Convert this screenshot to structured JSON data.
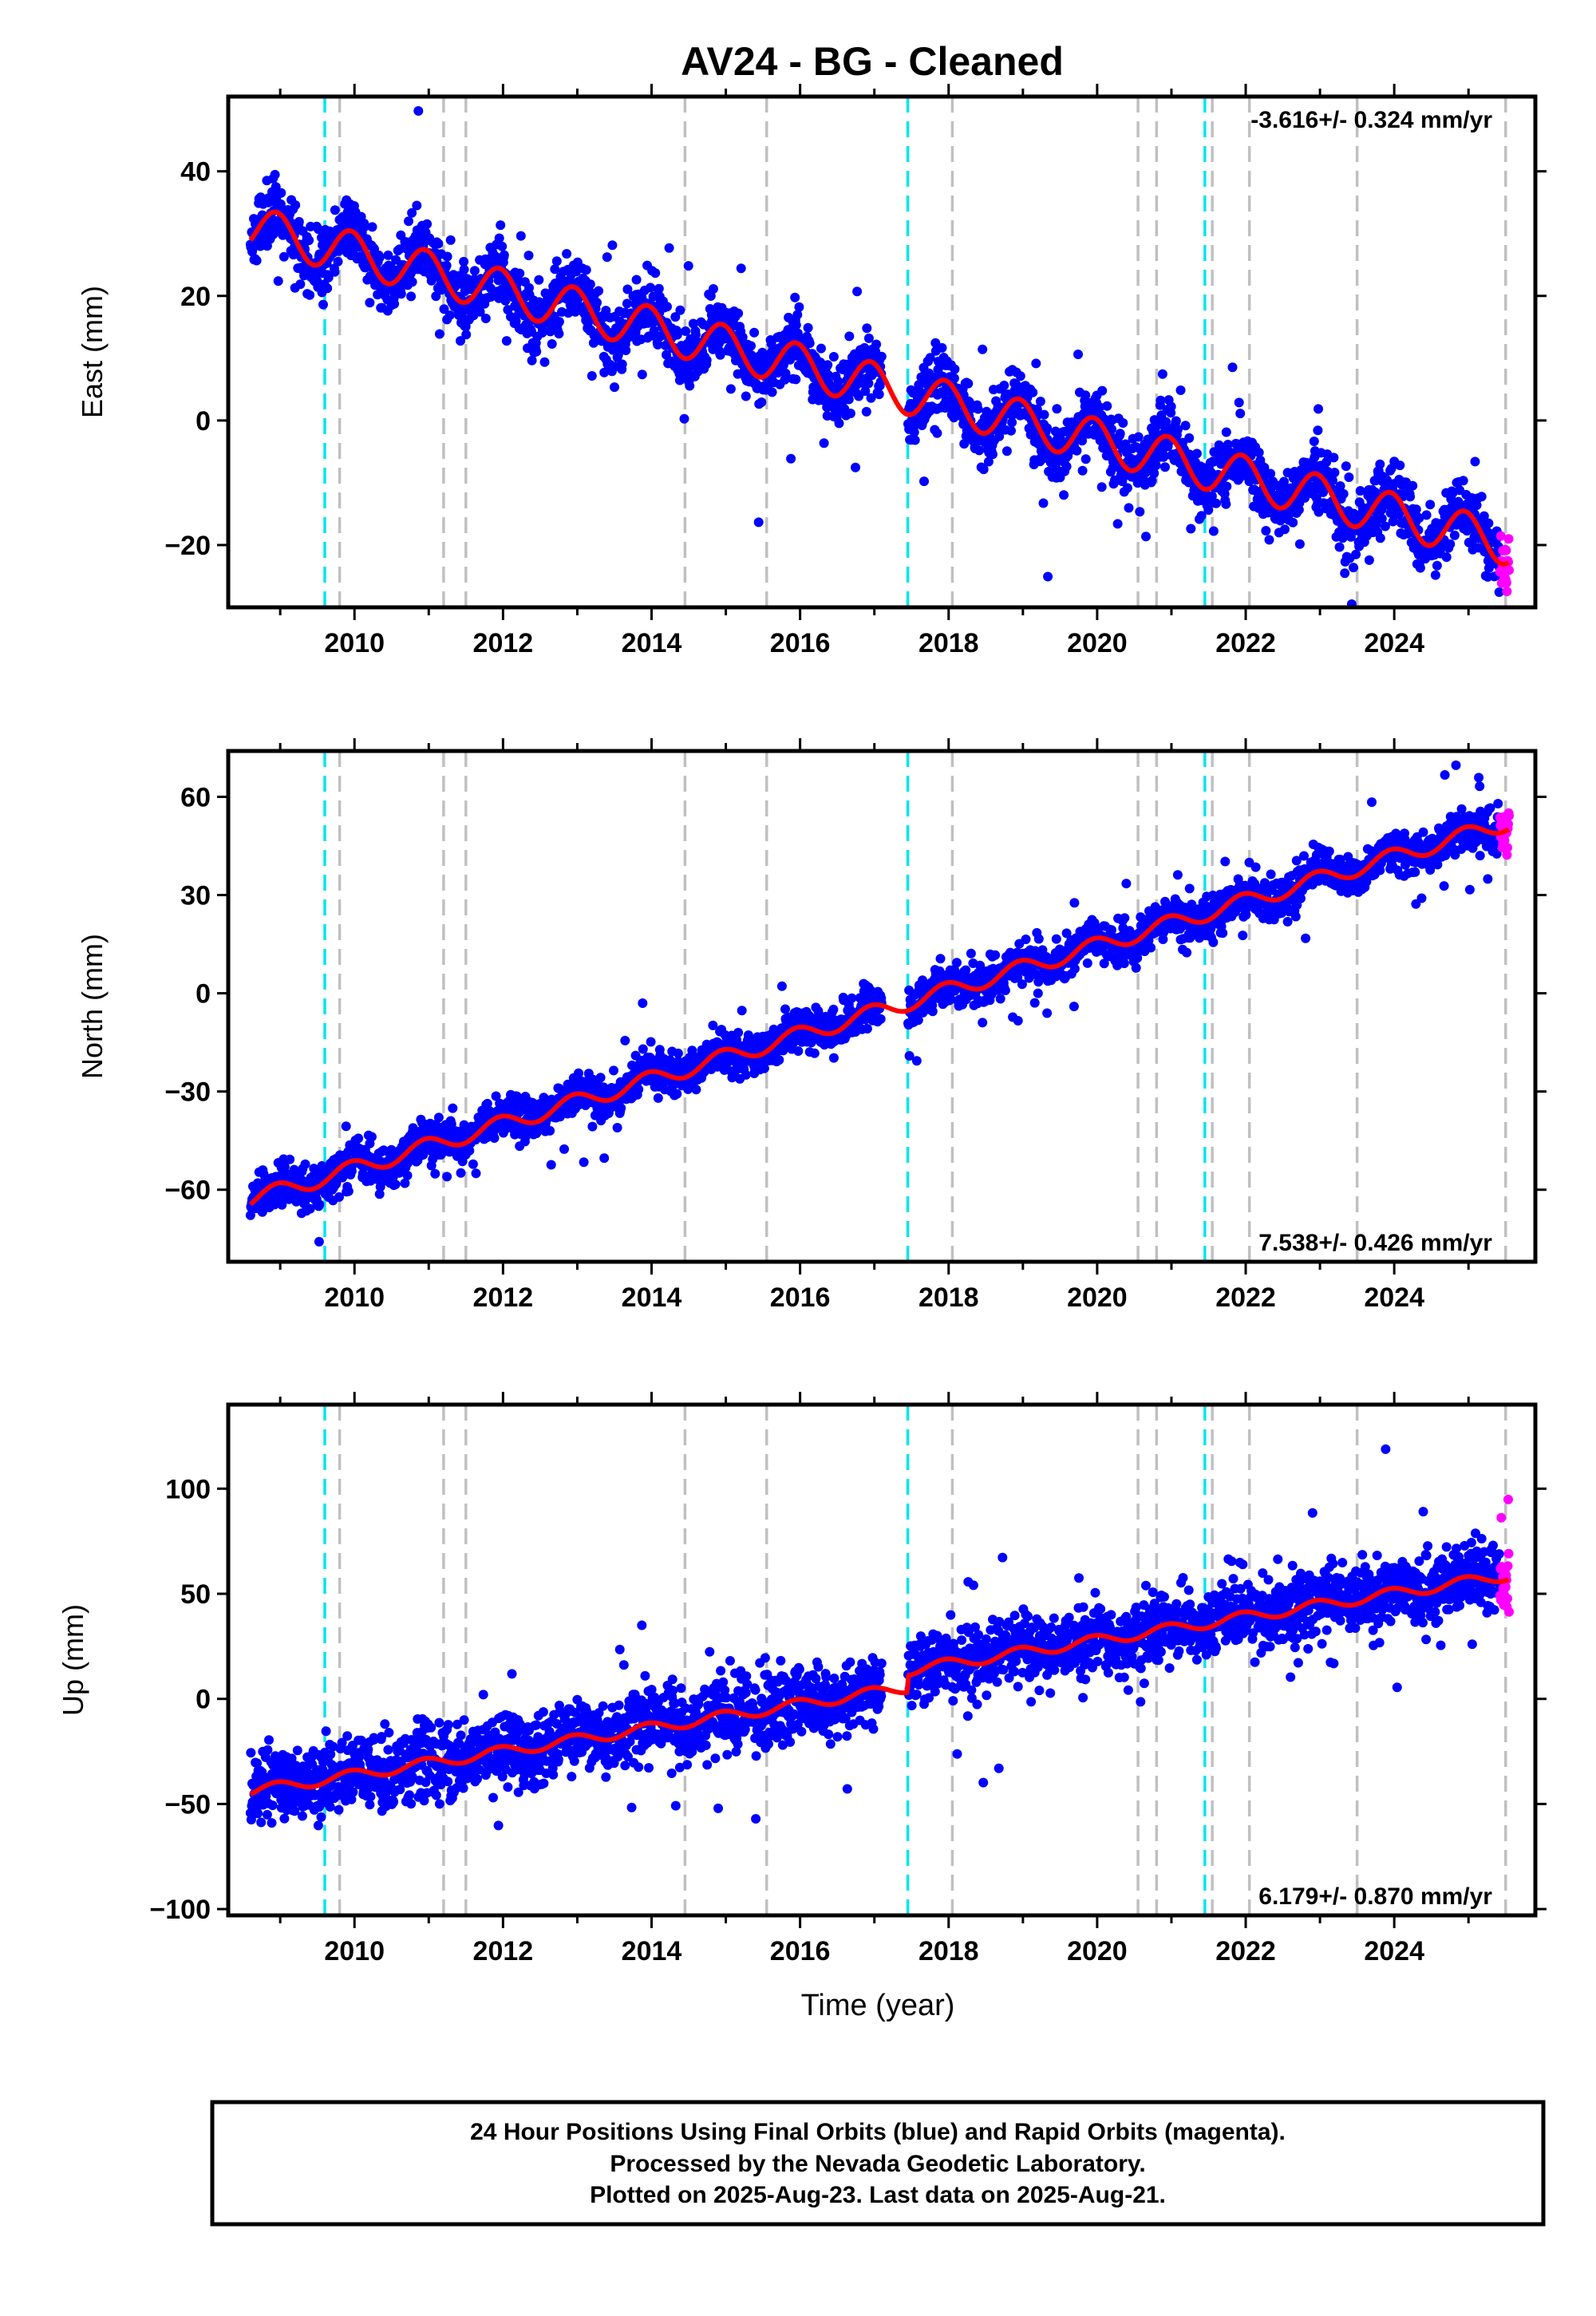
{
  "title": "AV24  - BG - Cleaned",
  "xlabel": "Time (year)",
  "footer": {
    "line1": "24 Hour Positions Using Final Orbits (blue) and Rapid Orbits (magenta).",
    "line2": "Processed by the Nevada Geodetic Laboratory.",
    "line3": "Plotted on 2025-Aug-23. Last data on 2025-Aug-21."
  },
  "colors": {
    "final": "#0000ff",
    "rapid": "#ff00ff",
    "model": "#ff0000",
    "cyan_line": "#00e5ee",
    "gray_line": "#c0c0c0"
  },
  "chart_data": [
    {
      "type": "scatter",
      "ylabel": "East (mm)",
      "rate": "-3.616+/- 0.324 mm/yr",
      "rate_position": "top-right",
      "xlim": [
        2008.3,
        2025.9
      ],
      "ylim": [
        -30,
        52
      ],
      "yticks": [
        -20,
        0,
        20,
        40
      ],
      "ytick_labels": [
        "−20",
        "0",
        "20",
        "40"
      ],
      "xticks": [
        2010,
        2012,
        2014,
        2016,
        2018,
        2020,
        2022,
        2024
      ],
      "xtick_labels": [
        "2010",
        "2012",
        "2014",
        "2016",
        "2018",
        "2020",
        "2022",
        "2024"
      ],
      "data_start": 2008.6,
      "data_end": 2025.55,
      "rapid_start": 2025.42,
      "gap": [
        2017.1,
        2017.45
      ],
      "trend": {
        "value_at_start": 31.0,
        "rate_per_year": -3.0,
        "seasonal_amplitude": 3.5
      },
      "offsets": [],
      "scatter_sd": 2.5,
      "series": [
        {
          "name": "Final Orbits",
          "color": "#0000ff"
        },
        {
          "name": "Rapid Orbits",
          "color": "#ff00ff"
        },
        {
          "name": "Model",
          "color": "#ff0000"
        }
      ]
    },
    {
      "type": "scatter",
      "ylabel": "North (mm)",
      "rate": "7.538+/- 0.426 mm/yr",
      "rate_position": "bottom-right",
      "xlim": [
        2008.3,
        2025.9
      ],
      "ylim": [
        -82,
        74
      ],
      "yticks": [
        -60,
        -30,
        0,
        30,
        60
      ],
      "ytick_labels": [
        "−60",
        "−30",
        "0",
        "30",
        "60"
      ],
      "xticks": [
        2010,
        2012,
        2014,
        2016,
        2018,
        2020,
        2022,
        2024
      ],
      "xtick_labels": [
        "2010",
        "2012",
        "2014",
        "2016",
        "2018",
        "2020",
        "2022",
        "2024"
      ],
      "data_start": 2008.6,
      "data_end": 2025.55,
      "rapid_start": 2025.42,
      "gap": [
        2017.1,
        2017.45
      ],
      "trend": {
        "value_at_start": -63.0,
        "rate_per_year": 6.8,
        "seasonal_amplitude": 2.5
      },
      "offsets": [],
      "scatter_sd": 3.0,
      "series": [
        {
          "name": "Final Orbits",
          "color": "#0000ff"
        },
        {
          "name": "Rapid Orbits",
          "color": "#ff00ff"
        },
        {
          "name": "Model",
          "color": "#ff0000"
        }
      ]
    },
    {
      "type": "scatter",
      "ylabel": "Up (mm)",
      "rate": "6.179+/- 0.870 mm/yr",
      "rate_position": "bottom-right",
      "xlim": [
        2008.3,
        2025.9
      ],
      "ylim": [
        -103,
        140
      ],
      "yticks": [
        -100,
        -50,
        0,
        50,
        100
      ],
      "ytick_labels": [
        "−100",
        "−50",
        "0",
        "50",
        "100"
      ],
      "xticks": [
        2010,
        2012,
        2014,
        2016,
        2018,
        2020,
        2022,
        2024
      ],
      "xtick_labels": [
        "2010",
        "2012",
        "2014",
        "2016",
        "2018",
        "2020",
        "2022",
        "2024"
      ],
      "data_start": 2008.6,
      "data_end": 2025.55,
      "rapid_start": 2025.42,
      "gap": [
        2017.1,
        2017.45
      ],
      "trend": {
        "value_at_start": -44.0,
        "rate_per_year": 5.6,
        "seasonal_amplitude": 2.5
      },
      "offsets": [
        {
          "year": 2017.45,
          "delta": 8
        }
      ],
      "scatter_sd": 8.0,
      "series": [
        {
          "name": "Final Orbits",
          "color": "#0000ff"
        },
        {
          "name": "Rapid Orbits",
          "color": "#ff00ff"
        },
        {
          "name": "Model",
          "color": "#ff0000"
        }
      ]
    }
  ],
  "event_lines": {
    "cyan": [
      2009.6,
      2017.45,
      2021.45
    ],
    "gray": [
      2009.8,
      2011.2,
      2011.5,
      2014.45,
      2015.55,
      2018.05,
      2020.55,
      2020.8,
      2021.55,
      2022.05,
      2023.5,
      2025.5
    ]
  }
}
